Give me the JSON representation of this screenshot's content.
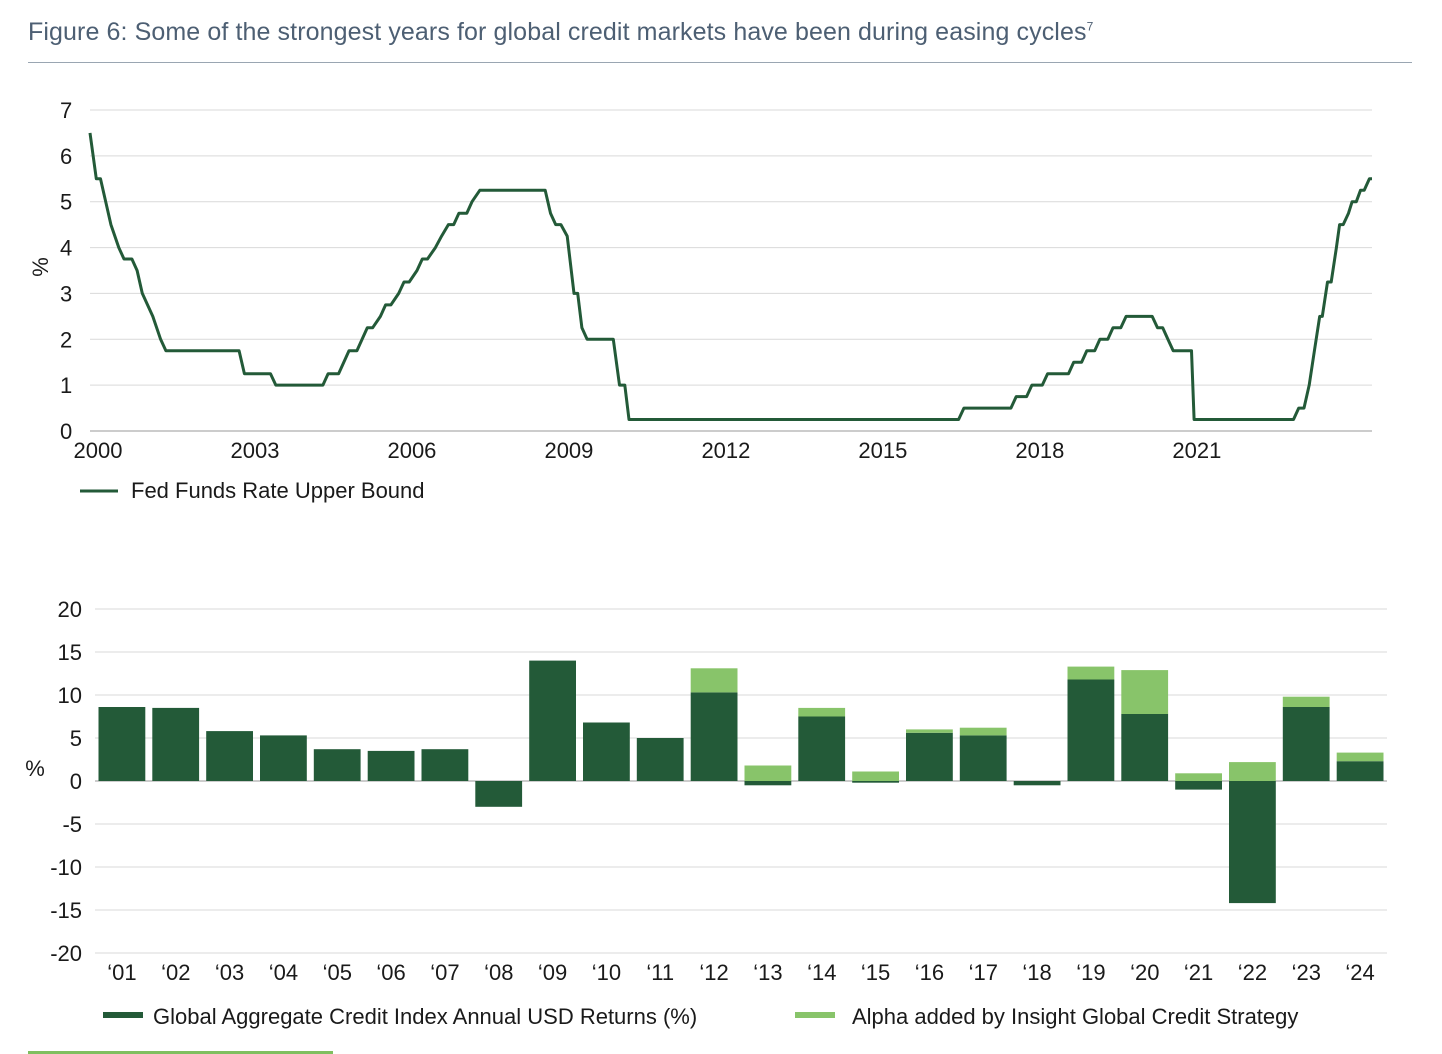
{
  "figure": {
    "title": "Figure 6: Some of the strongest years for global credit markets have been during easing cycles",
    "footnote_mark": "7"
  },
  "colors": {
    "dark_green": "#235a38",
    "light_green": "#88c46a",
    "grid": "#d9d9d9",
    "title": "#4d5f73"
  },
  "chart_data": [
    {
      "type": "line",
      "name": "fed-funds",
      "ylabel": "%",
      "ylim": [
        0,
        7
      ],
      "yticks": [
        0,
        1,
        2,
        3,
        4,
        5,
        6,
        7
      ],
      "xlim": [
        2000,
        2024.5
      ],
      "xticks": [
        2000,
        2003,
        2006,
        2009,
        2012,
        2015,
        2018,
        2021
      ],
      "series": [
        {
          "name": "Fed Funds Rate Upper Bound",
          "points": [
            [
              2000.0,
              6.5
            ],
            [
              2000.12,
              5.5
            ],
            [
              2000.2,
              5.5
            ],
            [
              2000.3,
              5.0
            ],
            [
              2000.4,
              4.5
            ],
            [
              2000.55,
              4.0
            ],
            [
              2000.65,
              3.75
            ],
            [
              2000.8,
              3.75
            ],
            [
              2000.9,
              3.5
            ],
            [
              2001.0,
              3.0
            ],
            [
              2001.2,
              2.5
            ],
            [
              2001.35,
              2.0
            ],
            [
              2001.45,
              1.75
            ],
            [
              2001.9,
              1.75
            ],
            [
              2002.85,
              1.75
            ],
            [
              2002.95,
              1.25
            ],
            [
              2003.45,
              1.25
            ],
            [
              2003.55,
              1.0
            ],
            [
              2004.45,
              1.0
            ],
            [
              2004.55,
              1.25
            ],
            [
              2004.75,
              1.25
            ],
            [
              2004.85,
              1.5
            ],
            [
              2004.95,
              1.75
            ],
            [
              2005.1,
              1.75
            ],
            [
              2005.2,
              2.0
            ],
            [
              2005.3,
              2.25
            ],
            [
              2005.4,
              2.25
            ],
            [
              2005.55,
              2.5
            ],
            [
              2005.65,
              2.75
            ],
            [
              2005.75,
              2.75
            ],
            [
              2005.9,
              3.0
            ],
            [
              2006.0,
              3.25
            ],
            [
              2006.1,
              3.25
            ],
            [
              2006.25,
              3.5
            ],
            [
              2006.35,
              3.75
            ],
            [
              2006.45,
              3.75
            ],
            [
              2006.6,
              4.0
            ],
            [
              2006.72,
              4.25
            ],
            [
              2006.85,
              4.5
            ],
            [
              2006.95,
              4.5
            ],
            [
              2007.05,
              4.75
            ],
            [
              2007.2,
              4.75
            ],
            [
              2007.3,
              5.0
            ],
            [
              2007.45,
              5.25
            ],
            [
              2008.7,
              5.25
            ],
            [
              2008.8,
              4.75
            ],
            [
              2008.9,
              4.5
            ],
            [
              2009.0,
              4.5
            ],
            [
              2009.12,
              4.25
            ],
            [
              2009.25,
              3.0
            ],
            [
              2009.32,
              3.0
            ],
            [
              2009.4,
              2.25
            ],
            [
              2009.5,
              2.0
            ],
            [
              2009.9,
              2.0
            ],
            [
              2010.0,
              2.0
            ],
            [
              2010.12,
              1.0
            ],
            [
              2010.22,
              1.0
            ],
            [
              2010.3,
              0.25
            ],
            [
              2016.6,
              0.25
            ],
            [
              2016.7,
              0.5
            ],
            [
              2017.6,
              0.5
            ],
            [
              2017.7,
              0.75
            ],
            [
              2017.9,
              0.75
            ],
            [
              2018.0,
              1.0
            ],
            [
              2018.2,
              1.0
            ],
            [
              2018.3,
              1.25
            ],
            [
              2018.7,
              1.25
            ],
            [
              2018.8,
              1.5
            ],
            [
              2018.95,
              1.5
            ],
            [
              2019.05,
              1.75
            ],
            [
              2019.2,
              1.75
            ],
            [
              2019.3,
              2.0
            ],
            [
              2019.45,
              2.0
            ],
            [
              2019.55,
              2.25
            ],
            [
              2019.7,
              2.25
            ],
            [
              2019.8,
              2.5
            ],
            [
              2020.3,
              2.5
            ],
            [
              2020.4,
              2.25
            ],
            [
              2020.5,
              2.25
            ],
            [
              2020.6,
              2.0
            ],
            [
              2020.7,
              1.75
            ],
            [
              2021.05,
              1.75
            ],
            [
              2021.1,
              0.25
            ],
            [
              2023.0,
              0.25
            ],
            [
              2023.1,
              0.5
            ],
            [
              2023.2,
              0.5
            ],
            [
              2023.3,
              1.0
            ],
            [
              2023.4,
              1.75
            ],
            [
              2023.5,
              2.5
            ],
            [
              2023.55,
              2.5
            ],
            [
              2023.65,
              3.25
            ],
            [
              2023.72,
              3.25
            ],
            [
              2023.82,
              4.0
            ],
            [
              2023.88,
              4.5
            ],
            [
              2023.95,
              4.5
            ],
            [
              2024.05,
              4.75
            ],
            [
              2024.12,
              5.0
            ],
            [
              2024.2,
              5.0
            ],
            [
              2024.28,
              5.25
            ],
            [
              2024.35,
              5.25
            ],
            [
              2024.45,
              5.5
            ],
            [
              2024.5,
              5.5
            ]
          ]
        }
      ]
    },
    {
      "type": "bar",
      "name": "credit-returns",
      "stacked": true,
      "ylabel": "%",
      "ylim": [
        -20,
        20
      ],
      "yticks": [
        20,
        15,
        10,
        5,
        0,
        -5,
        -10,
        -15,
        -20
      ],
      "categories": [
        "‘01",
        "‘02",
        "‘03",
        "‘04",
        "‘05",
        "‘06",
        "‘07",
        "‘08",
        "‘09",
        "‘10",
        "‘11",
        "‘12",
        "‘13",
        "‘14",
        "‘15",
        "‘16",
        "‘17",
        "‘18",
        "‘19",
        "‘20",
        "‘21",
        "‘22",
        "‘23",
        "‘24"
      ],
      "series": [
        {
          "name": "Global Aggregate Credit Index Annual USD Returns (%)",
          "values": [
            8.6,
            8.5,
            5.8,
            5.3,
            3.7,
            3.5,
            3.7,
            -3.0,
            14.0,
            6.8,
            5.0,
            10.3,
            -0.5,
            7.5,
            -0.2,
            5.6,
            5.3,
            -0.5,
            11.8,
            7.8,
            -1.0,
            -14.2,
            8.6,
            2.3
          ]
        },
        {
          "name": "Alpha added by Insight Global Credit Strategy",
          "values": [
            0,
            0,
            0,
            0,
            0,
            0,
            0,
            0,
            0,
            0,
            0,
            2.8,
            1.8,
            1.0,
            1.1,
            0.4,
            0.9,
            0,
            1.5,
            5.1,
            0.9,
            2.2,
            1.2,
            1.0
          ]
        }
      ]
    }
  ]
}
